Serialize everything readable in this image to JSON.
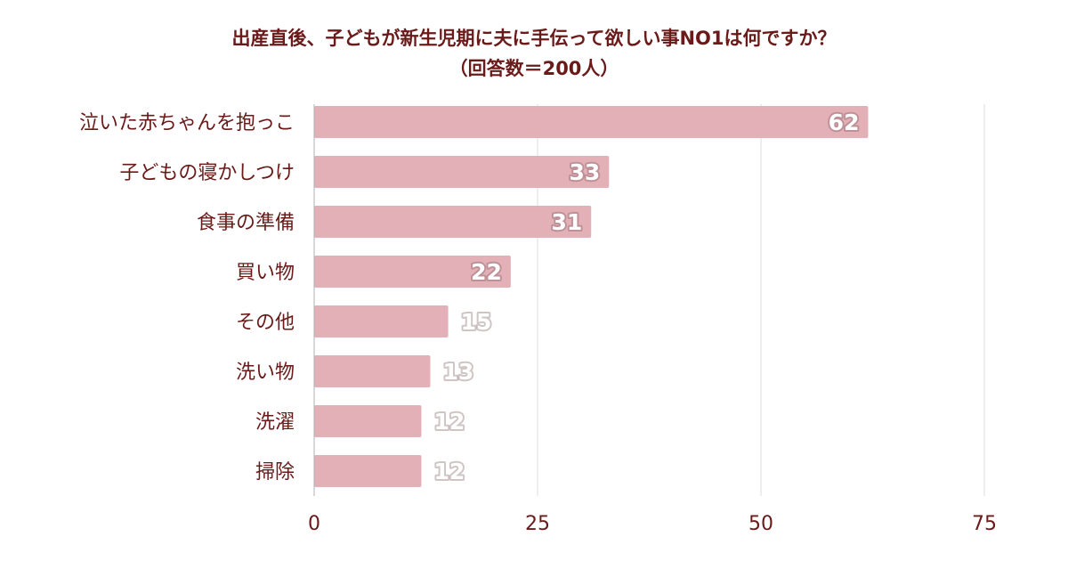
{
  "chart_data": {
    "type": "bar",
    "orientation": "horizontal",
    "title": "出産直後、子どもが新生児期に夫に手伝って欲しい事NO1は何ですか？",
    "subtitle": "（回答数＝200人）",
    "categories": [
      "泣いた赤ちゃんを抱っこ",
      "子どもの寝かしつけ",
      "食事の準備",
      "買い物",
      "その他",
      "洗い物",
      "洗濯",
      "掃除"
    ],
    "values": [
      62,
      33,
      31,
      22,
      15,
      13,
      12,
      12
    ],
    "xlim": [
      0,
      75
    ],
    "xticks": [
      0,
      25,
      50,
      75
    ],
    "grid": true,
    "legend": "none",
    "bar_color": "#e4b0b8",
    "grid_color": "#dcdcdc",
    "text_color": "#6b1a1a"
  }
}
